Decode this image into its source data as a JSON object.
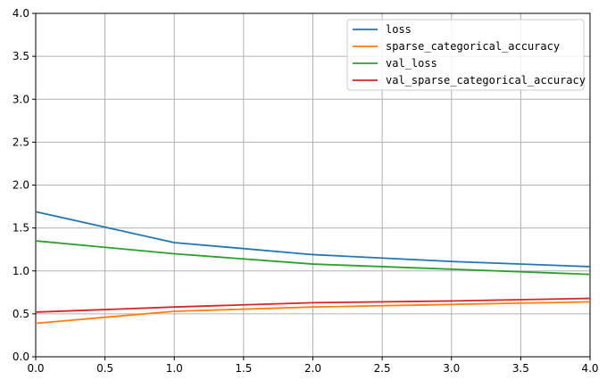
{
  "chart_data": {
    "type": "line",
    "title": "",
    "xlabel": "",
    "ylabel": "",
    "x": [
      0,
      1,
      2,
      3,
      4
    ],
    "xlim": [
      0,
      4
    ],
    "ylim": [
      0,
      4
    ],
    "xticks": [
      "0.0",
      "0.5",
      "1.0",
      "1.5",
      "2.0",
      "2.5",
      "3.0",
      "3.5",
      "4.0"
    ],
    "yticks": [
      "0.0",
      "0.5",
      "1.0",
      "1.5",
      "2.0",
      "2.5",
      "3.0",
      "3.5",
      "4.0"
    ],
    "grid": true,
    "legend_position": "top-right",
    "series": [
      {
        "name": "loss",
        "color": "#1f77b4",
        "values": [
          1.69,
          1.33,
          1.19,
          1.11,
          1.05
        ]
      },
      {
        "name": "sparse_categorical_accuracy",
        "color": "#ff7f0e",
        "values": [
          0.39,
          0.53,
          0.58,
          0.61,
          0.64
        ]
      },
      {
        "name": "val_loss",
        "color": "#2ca02c",
        "values": [
          1.35,
          1.2,
          1.08,
          1.02,
          0.96
        ]
      },
      {
        "name": "val_sparse_categorical_accuracy",
        "color": "#d62728",
        "values": [
          0.52,
          0.58,
          0.63,
          0.65,
          0.68
        ]
      }
    ]
  }
}
